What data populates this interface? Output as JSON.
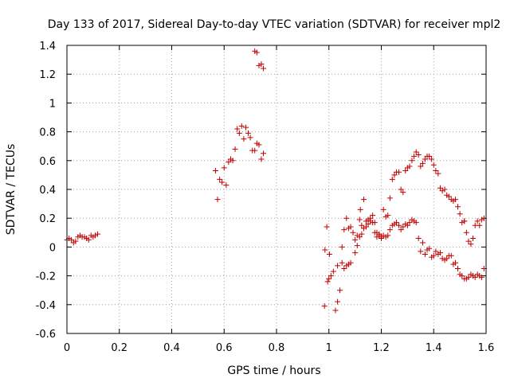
{
  "chart_data": {
    "type": "scatter",
    "title": "Day 133 of 2017, Sidereal Day-to-day VTEC variation (SDTVAR) for receiver mpl2",
    "xlabel": "GPS time / hours",
    "ylabel": "SDTVAR / TECUs",
    "xlim": [
      0,
      1.6
    ],
    "ylim": [
      -0.6,
      1.4
    ],
    "grid": true,
    "marker": "+",
    "color": "#c00000",
    "xticks": [
      0,
      0.2,
      0.4,
      0.6,
      0.8,
      1,
      1.2,
      1.4,
      1.6
    ],
    "xtick_labels": [
      "0",
      "0.2",
      "0.4",
      "0.6",
      "0.8",
      "1",
      "1.2",
      "1.4",
      "1.6"
    ],
    "yticks": [
      -0.6,
      -0.4,
      -0.2,
      0,
      0.2,
      0.4,
      0.6,
      0.8,
      1,
      1.2,
      1.4
    ],
    "ytick_labels": [
      "-0.6",
      "-0.4",
      "-0.2",
      "0",
      "0.2",
      "0.4",
      "0.6",
      "0.8",
      "1",
      "1.2",
      "1.4"
    ],
    "series": [
      {
        "name": "mpl2",
        "points": [
          [
            0.0,
            0.05
          ],
          [
            0.008,
            0.06
          ],
          [
            0.017,
            0.05
          ],
          [
            0.025,
            0.03
          ],
          [
            0.033,
            0.04
          ],
          [
            0.042,
            0.07
          ],
          [
            0.05,
            0.08
          ],
          [
            0.058,
            0.07
          ],
          [
            0.067,
            0.07
          ],
          [
            0.075,
            0.06
          ],
          [
            0.083,
            0.05
          ],
          [
            0.092,
            0.08
          ],
          [
            0.1,
            0.07
          ],
          [
            0.108,
            0.08
          ],
          [
            0.117,
            0.09
          ],
          [
            0.567,
            0.53
          ],
          [
            0.575,
            0.33
          ],
          [
            0.583,
            0.47
          ],
          [
            0.592,
            0.45
          ],
          [
            0.6,
            0.55
          ],
          [
            0.608,
            0.43
          ],
          [
            0.617,
            0.59
          ],
          [
            0.625,
            0.61
          ],
          [
            0.633,
            0.6
          ],
          [
            0.642,
            0.68
          ],
          [
            0.65,
            0.82
          ],
          [
            0.658,
            0.79
          ],
          [
            0.667,
            0.84
          ],
          [
            0.675,
            0.75
          ],
          [
            0.683,
            0.83
          ],
          [
            0.692,
            0.79
          ],
          [
            0.7,
            0.76
          ],
          [
            0.708,
            0.67
          ],
          [
            0.717,
            0.67
          ],
          [
            0.725,
            0.72
          ],
          [
            0.733,
            0.71
          ],
          [
            0.742,
            0.61
          ],
          [
            0.75,
            0.65
          ],
          [
            0.717,
            1.36
          ],
          [
            0.725,
            1.35
          ],
          [
            0.733,
            1.26
          ],
          [
            0.742,
            1.27
          ],
          [
            0.75,
            1.24
          ],
          [
            0.983,
            -0.41
          ],
          [
            0.985,
            -0.02
          ],
          [
            0.992,
            0.14
          ],
          [
            0.995,
            -0.24
          ],
          [
            1.0,
            -0.22
          ],
          [
            1.002,
            -0.05
          ],
          [
            1.008,
            -0.2
          ],
          [
            1.017,
            -0.17
          ],
          [
            1.025,
            -0.44
          ],
          [
            1.033,
            -0.38
          ],
          [
            1.033,
            -0.13
          ],
          [
            1.042,
            -0.3
          ],
          [
            1.05,
            -0.11
          ],
          [
            1.058,
            -0.15
          ],
          [
            1.067,
            -0.13
          ],
          [
            1.075,
            -0.12
          ],
          [
            1.083,
            -0.11
          ],
          [
            1.05,
            0.0
          ],
          [
            1.058,
            0.12
          ],
          [
            1.067,
            0.2
          ],
          [
            1.075,
            0.13
          ],
          [
            1.083,
            0.14
          ],
          [
            1.092,
            0.1
          ],
          [
            1.1,
            0.05
          ],
          [
            1.108,
            0.08
          ],
          [
            1.117,
            0.19
          ],
          [
            1.12,
            0.26
          ],
          [
            1.125,
            0.15
          ],
          [
            1.133,
            0.33
          ],
          [
            1.142,
            0.14
          ],
          [
            1.15,
            0.16
          ],
          [
            1.158,
            0.18
          ],
          [
            1.167,
            0.22
          ],
          [
            1.175,
            0.17
          ],
          [
            1.183,
            0.1
          ],
          [
            1.192,
            0.08
          ],
          [
            1.2,
            0.07
          ],
          [
            1.208,
            0.26
          ],
          [
            1.217,
            0.21
          ],
          [
            1.225,
            0.22
          ],
          [
            1.233,
            0.34
          ],
          [
            1.242,
            0.47
          ],
          [
            1.25,
            0.5
          ],
          [
            1.258,
            0.52
          ],
          [
            1.267,
            0.52
          ],
          [
            1.275,
            0.4
          ],
          [
            1.283,
            0.38
          ],
          [
            1.292,
            0.53
          ],
          [
            1.3,
            0.55
          ],
          [
            1.308,
            0.56
          ],
          [
            1.317,
            0.6
          ],
          [
            1.325,
            0.63
          ],
          [
            1.333,
            0.66
          ],
          [
            1.342,
            0.64
          ],
          [
            1.35,
            0.56
          ],
          [
            1.358,
            0.58
          ],
          [
            1.367,
            0.61
          ],
          [
            1.375,
            0.63
          ],
          [
            1.383,
            0.63
          ],
          [
            1.392,
            0.61
          ],
          [
            1.4,
            0.57
          ],
          [
            1.408,
            0.53
          ],
          [
            1.417,
            0.51
          ],
          [
            1.425,
            0.41
          ],
          [
            1.433,
            0.39
          ],
          [
            1.442,
            0.4
          ],
          [
            1.45,
            0.36
          ],
          [
            1.458,
            0.35
          ],
          [
            1.467,
            0.33
          ],
          [
            1.475,
            0.32
          ],
          [
            1.483,
            0.33
          ],
          [
            1.492,
            0.28
          ],
          [
            1.5,
            0.23
          ],
          [
            1.508,
            0.17
          ],
          [
            1.517,
            0.18
          ],
          [
            1.525,
            0.1
          ],
          [
            1.533,
            0.04
          ],
          [
            1.542,
            0.02
          ],
          [
            1.55,
            0.06
          ],
          [
            1.558,
            0.15
          ],
          [
            1.567,
            0.18
          ],
          [
            1.575,
            0.15
          ],
          [
            1.583,
            0.19
          ],
          [
            1.592,
            0.2
          ],
          [
            1.1,
            -0.04
          ],
          [
            1.108,
            0.01
          ],
          [
            1.117,
            0.07
          ],
          [
            1.125,
            0.09
          ],
          [
            1.133,
            0.13
          ],
          [
            1.142,
            0.18
          ],
          [
            1.15,
            0.19
          ],
          [
            1.158,
            0.2
          ],
          [
            1.167,
            0.17
          ],
          [
            1.175,
            0.1
          ],
          [
            1.183,
            0.07
          ],
          [
            1.192,
            0.09
          ],
          [
            1.2,
            0.06
          ],
          [
            1.208,
            0.08
          ],
          [
            1.217,
            0.07
          ],
          [
            1.225,
            0.08
          ],
          [
            1.233,
            0.12
          ],
          [
            1.242,
            0.15
          ],
          [
            1.25,
            0.16
          ],
          [
            1.258,
            0.17
          ],
          [
            1.267,
            0.15
          ],
          [
            1.275,
            0.12
          ],
          [
            1.283,
            0.14
          ],
          [
            1.292,
            0.16
          ],
          [
            1.3,
            0.15
          ],
          [
            1.308,
            0.17
          ],
          [
            1.317,
            0.19
          ],
          [
            1.325,
            0.18
          ],
          [
            1.333,
            0.17
          ],
          [
            1.342,
            0.06
          ],
          [
            1.35,
            -0.03
          ],
          [
            1.358,
            0.03
          ],
          [
            1.367,
            -0.05
          ],
          [
            1.375,
            -0.02
          ],
          [
            1.383,
            -0.01
          ],
          [
            1.392,
            -0.07
          ],
          [
            1.4,
            -0.06
          ],
          [
            1.408,
            -0.03
          ],
          [
            1.417,
            -0.05
          ],
          [
            1.425,
            -0.04
          ],
          [
            1.433,
            -0.08
          ],
          [
            1.442,
            -0.09
          ],
          [
            1.45,
            -0.08
          ],
          [
            1.458,
            -0.06
          ],
          [
            1.467,
            -0.06
          ],
          [
            1.475,
            -0.12
          ],
          [
            1.483,
            -0.11
          ],
          [
            1.492,
            -0.15
          ],
          [
            1.5,
            -0.19
          ],
          [
            1.508,
            -0.2
          ],
          [
            1.517,
            -0.22
          ],
          [
            1.525,
            -0.22
          ],
          [
            1.533,
            -0.21
          ],
          [
            1.542,
            -0.19
          ],
          [
            1.55,
            -0.2
          ],
          [
            1.558,
            -0.21
          ],
          [
            1.567,
            -0.19
          ],
          [
            1.575,
            -0.2
          ],
          [
            1.583,
            -0.21
          ],
          [
            1.592,
            -0.15
          ],
          [
            1.517,
            0.18
          ]
        ]
      }
    ]
  }
}
